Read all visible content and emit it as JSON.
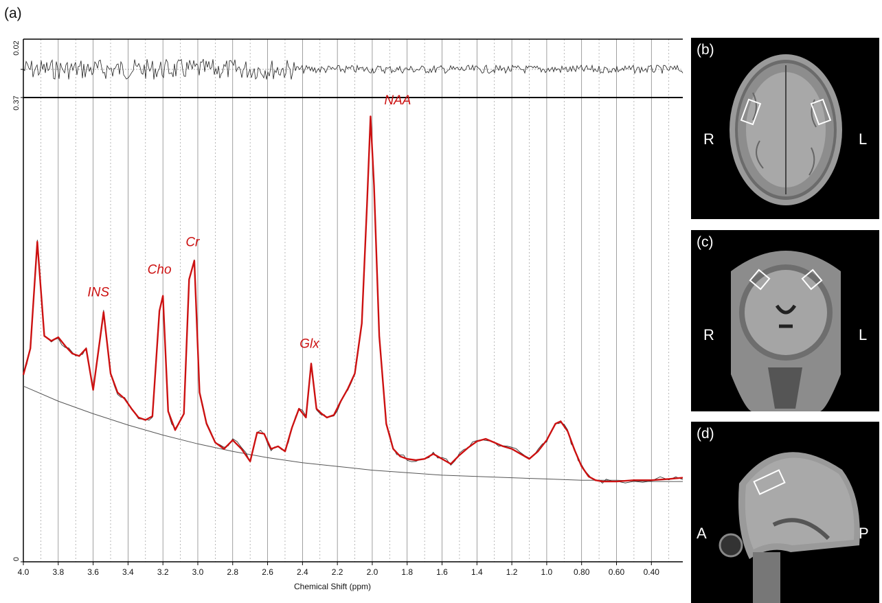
{
  "figure_label": "(a)",
  "chart_data": {
    "type": "line",
    "xlabel": "Chemical Shift (ppm)",
    "x_reversed": true,
    "xlim": [
      4.0,
      0.22
    ],
    "ylim": [
      0,
      0.37
    ],
    "y_ticks": [
      "0",
      "0.37"
    ],
    "residual_ticks": [
      "0.02"
    ],
    "x_ticks": [
      "4.0",
      "3.8",
      "3.6",
      "3.4",
      "3.2",
      "3.0",
      "2.8",
      "2.6",
      "2.4",
      "2.2",
      "2.0",
      "1.8",
      "1.6",
      "1.4",
      "1.2",
      "1.0",
      "0.80",
      "0.60",
      "0.40"
    ],
    "x_tick_values": [
      4.0,
      3.8,
      3.6,
      3.4,
      3.2,
      3.0,
      2.8,
      2.6,
      2.4,
      2.2,
      2.0,
      1.8,
      1.6,
      1.4,
      1.2,
      1.0,
      0.8,
      0.6,
      0.4
    ],
    "fit_color": "#cc1111",
    "annotations": [
      {
        "label": "NAA",
        "x": 2.01,
        "y": 0.358
      },
      {
        "label": "Cr",
        "x": 3.03,
        "y": 0.245
      },
      {
        "label": "Cho",
        "x": 3.22,
        "y": 0.223
      },
      {
        "label": "INS",
        "x": 3.57,
        "y": 0.205
      },
      {
        "label": "Glx",
        "x": 2.36,
        "y": 0.164
      }
    ],
    "series": [
      {
        "values_x": [
          4.0,
          3.96,
          3.92,
          3.88,
          3.84,
          3.8,
          3.76,
          3.72,
          3.68,
          3.64,
          3.6,
          3.56,
          3.54,
          3.5,
          3.46,
          3.42,
          3.38,
          3.34,
          3.3,
          3.26,
          3.22,
          3.2,
          3.17,
          3.13,
          3.08,
          3.05,
          3.02,
          2.99,
          2.95,
          2.9,
          2.85,
          2.8,
          2.75,
          2.7,
          2.66,
          2.62,
          2.58,
          2.54,
          2.5,
          2.46,
          2.42,
          2.38,
          2.35,
          2.32,
          2.29,
          2.26,
          2.22,
          2.18,
          2.14,
          2.1,
          2.06,
          2.03,
          2.01,
          1.99,
          1.96,
          1.92,
          1.88,
          1.84,
          1.8,
          1.75,
          1.7,
          1.65,
          1.6,
          1.55,
          1.5,
          1.45,
          1.4,
          1.35,
          1.3,
          1.25,
          1.2,
          1.15,
          1.1,
          1.05,
          1.0,
          0.95,
          0.92,
          0.88,
          0.84,
          0.8,
          0.76,
          0.72,
          0.68,
          0.64,
          0.6,
          0.5,
          0.4,
          0.3,
          0.22
        ],
        "values": [
          0.149,
          0.17,
          0.255,
          0.18,
          0.176,
          0.179,
          0.172,
          0.166,
          0.164,
          0.17,
          0.137,
          0.178,
          0.199,
          0.15,
          0.135,
          0.13,
          0.122,
          0.115,
          0.113,
          0.116,
          0.2,
          0.212,
          0.12,
          0.105,
          0.118,
          0.225,
          0.24,
          0.135,
          0.11,
          0.095,
          0.09,
          0.097,
          0.09,
          0.08,
          0.103,
          0.102,
          0.09,
          0.092,
          0.088,
          0.107,
          0.122,
          0.115,
          0.158,
          0.122,
          0.118,
          0.115,
          0.117,
          0.128,
          0.138,
          0.15,
          0.19,
          0.285,
          0.355,
          0.3,
          0.18,
          0.11,
          0.09,
          0.084,
          0.082,
          0.081,
          0.082,
          0.086,
          0.082,
          0.078,
          0.085,
          0.091,
          0.096,
          0.098,
          0.095,
          0.092,
          0.09,
          0.086,
          0.082,
          0.088,
          0.097,
          0.11,
          0.112,
          0.104,
          0.089,
          0.076,
          0.068,
          0.065,
          0.064,
          0.064,
          0.064,
          0.065,
          0.065,
          0.066,
          0.067
        ]
      },
      {
        "values_x": [
          4.0,
          3.8,
          3.6,
          3.4,
          3.2,
          3.0,
          2.8,
          2.6,
          2.4,
          2.2,
          2.0,
          1.8,
          1.6,
          1.4,
          1.2,
          1.0,
          0.8,
          0.6,
          0.4,
          0.22
        ],
        "values": [
          0.14,
          0.128,
          0.118,
          0.109,
          0.101,
          0.094,
          0.088,
          0.083,
          0.079,
          0.076,
          0.073,
          0.071,
          0.069,
          0.068,
          0.067,
          0.066,
          0.065,
          0.065,
          0.064,
          0.064
        ]
      }
    ]
  },
  "mri_panels": [
    {
      "label": "(b)",
      "left_orient": "R",
      "right_orient": "L"
    },
    {
      "label": "(c)",
      "left_orient": "R",
      "right_orient": "L"
    },
    {
      "label": "(d)",
      "left_orient": "A",
      "right_orient": "P"
    }
  ]
}
